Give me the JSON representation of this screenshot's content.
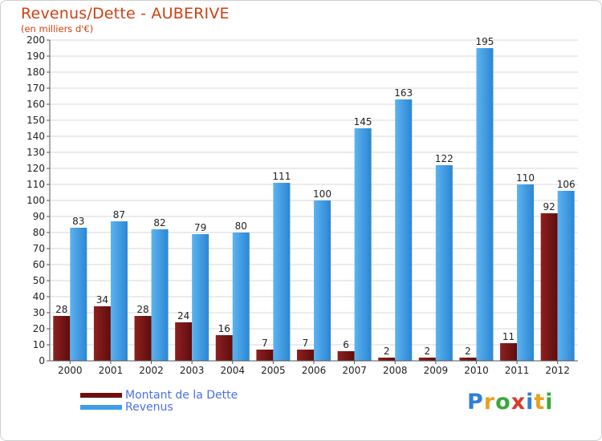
{
  "title": "Revenus/Dette - AUBERIVE",
  "subtitle": "(en milliers d'€)",
  "logo_text": "Proxiti",
  "colors": {
    "dette": "#7a1515",
    "revenus": "#3f9ee6",
    "title": "#d04010",
    "legend_text": "#4a6ef0"
  },
  "chart_data": {
    "type": "bar",
    "title": "Revenus/Dette - AUBERIVE",
    "subtitle": "(en milliers d'€)",
    "xlabel": "",
    "ylabel": "",
    "categories": [
      "2000",
      "2001",
      "2002",
      "2003",
      "2004",
      "2005",
      "2006",
      "2007",
      "2008",
      "2009",
      "2010",
      "2011",
      "2012"
    ],
    "series": [
      {
        "name": "Montant de la Dette",
        "values": [
          28,
          34,
          28,
          24,
          16,
          7,
          7,
          6,
          2,
          2,
          2,
          11,
          92
        ]
      },
      {
        "name": "Revenus",
        "values": [
          83,
          87,
          82,
          79,
          80,
          111,
          100,
          145,
          163,
          122,
          195,
          110,
          106
        ]
      }
    ],
    "ylim": [
      0,
      200
    ],
    "yticks": [
      0,
      10,
      20,
      30,
      40,
      50,
      60,
      70,
      80,
      90,
      100,
      110,
      120,
      130,
      140,
      150,
      160,
      170,
      180,
      190,
      200
    ],
    "grid": true,
    "legend_position": "bottom-left"
  }
}
